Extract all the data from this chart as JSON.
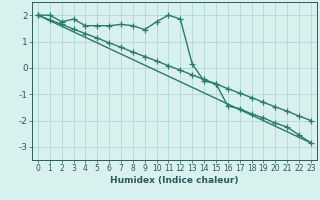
{
  "line1_x": [
    0,
    1,
    2,
    3,
    4,
    5,
    6,
    7,
    8,
    9,
    10,
    11,
    12,
    13,
    14,
    15,
    16,
    17,
    18,
    19,
    20,
    21,
    22,
    23
  ],
  "line1_y": [
    2.0,
    2.0,
    1.75,
    1.85,
    1.6,
    1.6,
    1.6,
    1.65,
    1.6,
    1.45,
    1.75,
    2.0,
    1.85,
    0.15,
    -0.5,
    -0.6,
    -1.45,
    -1.55,
    -1.75,
    -1.9,
    -2.1,
    -2.25,
    -2.55,
    -2.85
  ],
  "line2_x": [
    0,
    1,
    2,
    3,
    4,
    5,
    6,
    7,
    8,
    9,
    10,
    11,
    12,
    13,
    14,
    15,
    16,
    17,
    18,
    19,
    20,
    21,
    22,
    23
  ],
  "line2_y": [
    2.0,
    1.82,
    1.65,
    1.47,
    1.3,
    1.13,
    0.95,
    0.78,
    0.6,
    0.43,
    0.26,
    0.08,
    -0.09,
    -0.27,
    -0.44,
    -0.61,
    -0.79,
    -0.96,
    -1.13,
    -1.31,
    -1.48,
    -1.65,
    -1.83,
    -2.0
  ],
  "line3_x": [
    0,
    23
  ],
  "line3_y": [
    2.0,
    -2.85
  ],
  "color": "#2a7a6e",
  "bg_color": "#d8f0ee",
  "grid_color": "#b0d8d5",
  "xlabel": "Humidex (Indice chaleur)",
  "ylim": [
    -3.5,
    2.5
  ],
  "xlim": [
    -0.5,
    23.5
  ],
  "yticks": [
    -3,
    -2,
    -1,
    0,
    1,
    2
  ],
  "xticks": [
    0,
    1,
    2,
    3,
    4,
    5,
    6,
    7,
    8,
    9,
    10,
    11,
    12,
    13,
    14,
    15,
    16,
    17,
    18,
    19,
    20,
    21,
    22,
    23
  ],
  "font_color": "#2d5a5a",
  "marker": "+",
  "linewidth": 1.0,
  "markersize": 4,
  "axis_fontsize": 6.5
}
